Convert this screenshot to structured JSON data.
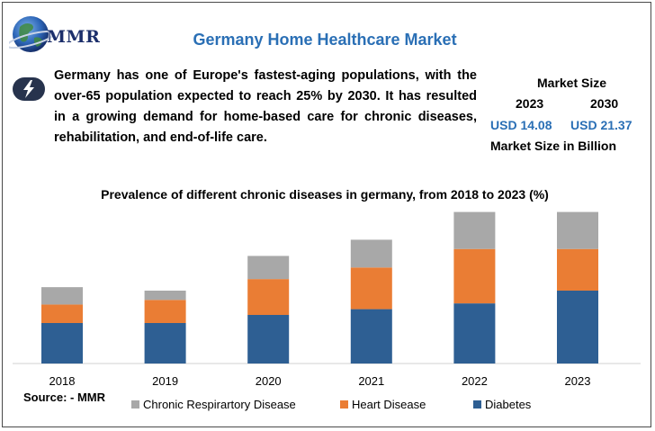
{
  "header": {
    "title": "Germany Home Healthcare Market",
    "logo_text": "MMR",
    "description": "Germany has one of Europe's fastest-aging populations, with the over-65 population expected to reach 25% by 2030. It has resulted in a growing demand for home-based care for chronic diseases, rehabilitation, and end-of-life care."
  },
  "market_size": {
    "heading": "Market Size",
    "year_start": "2023",
    "year_end": "2030",
    "value_start": "USD 14.08",
    "value_end": "USD 21.37",
    "footnote": "Market Size in Billion"
  },
  "footer": {
    "source": "Source: - MMR"
  },
  "colors": {
    "accent": "#2a6fb5",
    "diabetes": "#2e5f93",
    "heart": "#ea7d34",
    "respiratory": "#a8a8a8"
  },
  "icons": {
    "logo": "globe-icon",
    "bullet": "lightning-bolt-icon"
  },
  "chart_data": {
    "type": "bar",
    "stacked": true,
    "title": "Prevalence of different chronic diseases in germany, from 2018 to 2023 (%)",
    "categories": [
      "2018",
      "2019",
      "2020",
      "2021",
      "2022",
      "2023"
    ],
    "series": [
      {
        "name": "Diabetes",
        "color": "#2e5f93",
        "values": [
          35,
          35,
          42,
          47,
          52,
          63
        ]
      },
      {
        "name": "Heart Disease",
        "color": "#ea7d34",
        "values": [
          16,
          20,
          31,
          36,
          47,
          36
        ]
      },
      {
        "name": "Chronic Respirartory Disease",
        "color": "#a8a8a8",
        "values": [
          15,
          8,
          20,
          24,
          32,
          32
        ]
      }
    ],
    "legend_order": [
      "Chronic Respirartory Disease",
      "Heart Disease",
      "Diabetes"
    ],
    "ylim": [
      0,
      140
    ],
    "grid": false,
    "legend_position": "bottom"
  }
}
